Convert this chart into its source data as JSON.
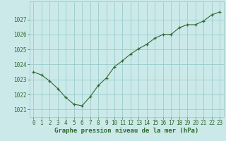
{
  "x": [
    0,
    1,
    2,
    3,
    4,
    5,
    6,
    7,
    8,
    9,
    10,
    11,
    12,
    13,
    14,
    15,
    16,
    17,
    18,
    19,
    20,
    21,
    22,
    23
  ],
  "y": [
    1023.5,
    1023.3,
    1022.9,
    1022.4,
    1021.8,
    1021.35,
    1021.25,
    1021.85,
    1022.6,
    1023.1,
    1023.85,
    1024.25,
    1024.7,
    1025.05,
    1025.35,
    1025.75,
    1026.0,
    1026.0,
    1026.45,
    1026.65,
    1026.65,
    1026.9,
    1027.3,
    1027.5
  ],
  "line_color": "#2d6a2d",
  "marker_color": "#2d6a2d",
  "bg_color": "#cce9e9",
  "grid_color": "#99cccc",
  "xlabel": "Graphe pression niveau de la mer (hPa)",
  "ylabel": "",
  "ylim": [
    1020.5,
    1028.2
  ],
  "xlim": [
    -0.5,
    23.5
  ],
  "yticks": [
    1021,
    1022,
    1023,
    1024,
    1025,
    1026,
    1027
  ],
  "xticks": [
    0,
    1,
    2,
    3,
    4,
    5,
    6,
    7,
    8,
    9,
    10,
    11,
    12,
    13,
    14,
    15,
    16,
    17,
    18,
    19,
    20,
    21,
    22,
    23
  ],
  "xlabel_fontsize": 6.5,
  "tick_fontsize": 5.5,
  "label_color": "#2d6a2d"
}
